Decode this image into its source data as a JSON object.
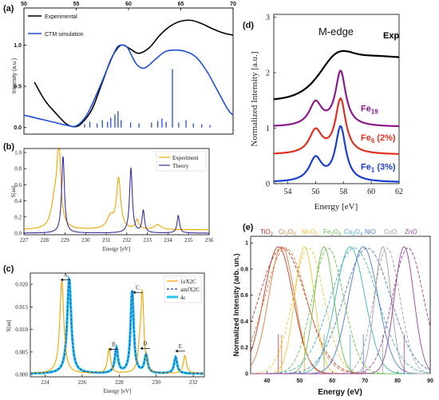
{
  "panels": {
    "a": "(a)",
    "b": "(b)",
    "c": "(c)",
    "d": "(d)",
    "e": "(e)"
  },
  "chart_data": [
    {
      "id": "a",
      "type": "line",
      "xlim": [
        50,
        70
      ],
      "ylim": [
        -0.08,
        1.45
      ],
      "xticks": [
        "50",
        "55",
        "60",
        "65",
        "70"
      ],
      "yticks": [
        "0.0",
        "0.5",
        "1.0"
      ],
      "ylabel": "Intensity (a.u.)",
      "legend_position": "top-left",
      "series": [
        {
          "name": "Experimental",
          "color": "#000000",
          "points": [
            [
              51,
              0.55
            ],
            [
              52,
              0.33
            ],
            [
              53,
              0.18
            ],
            [
              54,
              0.05
            ],
            [
              54.8,
              0.01
            ],
            [
              55.5,
              0.05
            ],
            [
              56.5,
              0.22
            ],
            [
              57.5,
              0.55
            ],
            [
              58.3,
              0.82
            ],
            [
              59,
              0.97
            ],
            [
              59.5,
              1.0
            ],
            [
              60.2,
              0.95
            ],
            [
              61,
              0.9
            ],
            [
              62,
              0.97
            ],
            [
              63,
              1.12
            ],
            [
              64,
              1.23
            ],
            [
              65,
              1.29
            ],
            [
              66,
              1.3
            ],
            [
              67,
              1.26
            ],
            [
              68,
              1.2
            ],
            [
              69,
              1.15
            ],
            [
              70,
              1.12
            ]
          ]
        },
        {
          "name": "CTM simulation",
          "color": "#1f4fd6",
          "points": [
            [
              50,
              0.15
            ],
            [
              51,
              0.12
            ],
            [
              52,
              0.09
            ],
            [
              53,
              0.06
            ],
            [
              54,
              0.03
            ],
            [
              55,
              0.02
            ],
            [
              56,
              0.15
            ],
            [
              57,
              0.42
            ],
            [
              58,
              0.72
            ],
            [
              58.8,
              0.95
            ],
            [
              59.3,
              1.0
            ],
            [
              59.9,
              0.97
            ],
            [
              60.7,
              0.78
            ],
            [
              61.5,
              0.72
            ],
            [
              62.5,
              0.82
            ],
            [
              63.5,
              0.92
            ],
            [
              64.5,
              0.94
            ],
            [
              65.5,
              0.92
            ],
            [
              66.5,
              0.85
            ],
            [
              67.5,
              0.68
            ],
            [
              68.5,
              0.45
            ],
            [
              69.5,
              0.22
            ],
            [
              70,
              0.15
            ]
          ]
        }
      ],
      "sticks": [
        [
          55.8,
          0.04
        ],
        [
          56.3,
          0.07
        ],
        [
          57,
          0.05
        ],
        [
          57.5,
          0.09
        ],
        [
          58,
          0.07
        ],
        [
          58.3,
          0.12
        ],
        [
          58.7,
          0.16
        ],
        [
          59,
          0.2
        ],
        [
          59.3,
          0.09
        ],
        [
          60.2,
          0.06
        ],
        [
          61,
          0.05
        ],
        [
          62.2,
          0.06
        ],
        [
          62.8,
          0.08
        ],
        [
          63.2,
          0.11
        ],
        [
          63.6,
          0.07
        ],
        [
          64.2,
          0.71
        ],
        [
          64.8,
          0.06
        ],
        [
          65.5,
          0.09
        ],
        [
          66.2,
          0.05
        ],
        [
          67,
          0.04
        ],
        [
          67.8,
          0.03
        ]
      ]
    },
    {
      "id": "b",
      "type": "line",
      "xlim": [
        227,
        236
      ],
      "ylim": [
        -0.02,
        1.05
      ],
      "xticks": [
        "227",
        "228",
        "229",
        "230",
        "231",
        "232",
        "233",
        "234",
        "235",
        "236"
      ],
      "yticks": [
        "0.0",
        "0.2",
        "0.4",
        "0.6",
        "0.8",
        "1.0"
      ],
      "xlabel": "Energy [eV]",
      "ylabel": "S[au]",
      "legend_position": "top-right",
      "series": [
        {
          "name": "Experiment",
          "color": "#f0a500",
          "peaks": [
            [
              228.7,
              1.0,
              0.1
            ],
            [
              228.5,
              0.35,
              0.2
            ],
            [
              231.6,
              0.62,
              0.12
            ],
            [
              231.2,
              0.15,
              0.2
            ],
            [
              232.5,
              0.12,
              0.1
            ],
            [
              233.5,
              0.06,
              0.2
            ]
          ],
          "baseline": 0.04
        },
        {
          "name": "Theory",
          "color": "#3a2fa0",
          "peaks": [
            [
              228.9,
              0.96,
              0.08
            ],
            [
              232.2,
              0.81,
              0.08
            ],
            [
              232.8,
              0.28,
              0.07
            ],
            [
              234.5,
              0.22,
              0.07
            ]
          ],
          "baseline": 0.0
        }
      ]
    },
    {
      "id": "c",
      "type": "line",
      "xlim": [
        223.2,
        232.6
      ],
      "ylim": [
        -0.0005,
        0.0225
      ],
      "xticks": [
        "224",
        "226",
        "228",
        "230",
        "232"
      ],
      "yticks": [
        "0.000",
        "0.005",
        "0.010",
        "0.015",
        "0.020"
      ],
      "xlabel": "Energy [eV]",
      "ylabel": "S[au]",
      "legend_position": "top-right",
      "annotations": [
        [
          "A",
          225.1,
          0.021
        ],
        [
          "B",
          227.7,
          0.0056
        ],
        [
          "C",
          229.0,
          0.0182
        ],
        [
          "D",
          229.4,
          0.0058
        ],
        [
          "E",
          231.3,
          0.0052
        ]
      ],
      "series": [
        {
          "name": "1eX2C",
          "color": "#f0a500",
          "peaks": [
            [
              224.9,
              0.0205,
              0.13
            ],
            [
              227.45,
              0.0055,
              0.1
            ],
            [
              229.25,
              0.0176,
              0.1
            ],
            [
              229.1,
              0.0035,
              0.1
            ],
            [
              231.55,
              0.004,
              0.1
            ]
          ]
        },
        {
          "name": "amfX2C",
          "color": "#1a3fc7",
          "peaks": [
            [
              225.3,
              0.021,
              0.13
            ],
            [
              227.85,
              0.0055,
              0.1
            ],
            [
              228.7,
              0.0183,
              0.1
            ],
            [
              229.45,
              0.004,
              0.1
            ],
            [
              231.05,
              0.0036,
              0.1
            ]
          ]
        },
        {
          "name": "4c",
          "color": "#27c4e6",
          "peaks": [
            [
              225.3,
              0.021,
              0.13
            ],
            [
              227.85,
              0.0055,
              0.1
            ],
            [
              228.7,
              0.0183,
              0.1
            ],
            [
              229.45,
              0.004,
              0.1
            ],
            [
              231.05,
              0.0036,
              0.1
            ]
          ]
        }
      ]
    },
    {
      "id": "d",
      "type": "line",
      "title": "M-edge",
      "xlim": [
        53,
        62
      ],
      "ylim": [
        0,
        3.05
      ],
      "xticks": [
        "54",
        "56",
        "58",
        "60",
        "62"
      ],
      "yticks": [
        "0",
        "1",
        "2",
        "3"
      ],
      "xlabel": "Energy [eV]",
      "ylabel": "Normalized Intensity [a.u.]",
      "series": [
        {
          "name": "Exp",
          "color": "#000000"
        },
        {
          "name": "Fe19",
          "label_main": "Fe",
          "label_sub": "19",
          "label_tail": "",
          "color": "#8b1a8b"
        },
        {
          "name": "Fe6 (2%)",
          "label_main": "Fe",
          "label_sub": "6",
          "label_tail": " (2%)",
          "color": "#e03020"
        },
        {
          "name": "Fe1 (3%)",
          "label_main": "Fe",
          "label_sub": "1",
          "label_tail": " (3%)",
          "color": "#1a3fd0"
        }
      ]
    },
    {
      "id": "e",
      "type": "line",
      "xlim": [
        35,
        90
      ],
      "ylim": [
        0,
        1.05
      ],
      "xticks": [
        "40",
        "50",
        "60",
        "70",
        "80",
        "90"
      ],
      "yticks": [
        "0",
        "0.2",
        "0.4",
        "0.6",
        "0.8",
        "1"
      ],
      "xlabel": "Energy (eV)",
      "ylabel": "Normalized Intensity (arb. un.)",
      "series": [
        {
          "label_main": "TiO",
          "label_sub": "2",
          "label_mid": "",
          "label_sub2": "",
          "color": "#c0392b",
          "peak": 43.5,
          "width": 4.5
        },
        {
          "label_main": "Cr",
          "label_sub": "2",
          "label_mid": "O",
          "label_sub2": "3",
          "color": "#e07a3a",
          "peak": 44.5,
          "width": 4.0
        },
        {
          "label_main": "MnO",
          "label_sub": "2",
          "label_mid": "",
          "label_sub2": "",
          "color": "#f4c542",
          "peak": 51.5,
          "width": 3.0
        },
        {
          "label_main": "Fe",
          "label_sub": "2",
          "label_mid": "O",
          "label_sub2": "3",
          "color": "#6abf4b",
          "peak": 57.5,
          "width": 3.0
        },
        {
          "label_main": "Co",
          "label_sub": "3",
          "label_mid": "O",
          "label_sub2": "4",
          "color": "#3fb0c9",
          "peak": 65.5,
          "width": 4.5
        },
        {
          "label_main": "NiO",
          "label_sub": "",
          "label_mid": "",
          "label_sub2": "",
          "color": "#4a7bc8",
          "peak": 69.5,
          "width": 4.5
        },
        {
          "label_main": "CuO",
          "label_sub": "",
          "label_mid": "",
          "label_sub2": "",
          "color": "#a0a0a0",
          "peak": 75.5,
          "width": 2.5
        },
        {
          "label_main": "ZnO",
          "label_sub": "",
          "label_mid": "",
          "label_sub2": "",
          "color": "#a0409a",
          "peak": 82.0,
          "width": 3.0
        }
      ]
    }
  ]
}
